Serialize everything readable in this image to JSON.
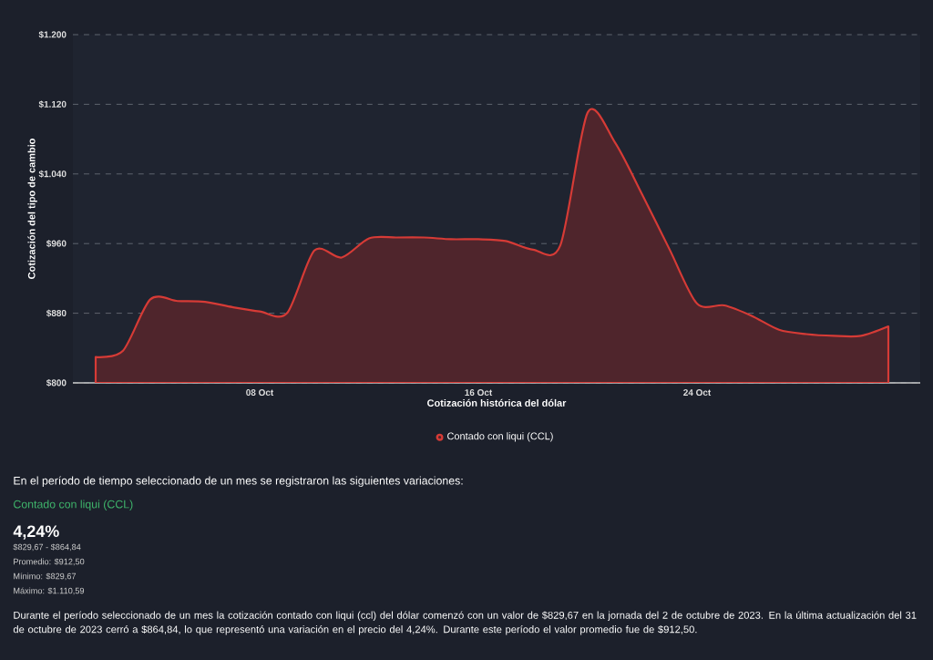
{
  "chart_data": {
    "type": "area",
    "xlabel": "Cotización histórica del dólar",
    "ylabel": "Cotización del tipo de cambio",
    "x": [
      "2023-10-02",
      "2023-10-03",
      "2023-10-04",
      "2023-10-05",
      "2023-10-06",
      "2023-10-07",
      "2023-10-08",
      "2023-10-09",
      "2023-10-10",
      "2023-10-11",
      "2023-10-12",
      "2023-10-13",
      "2023-10-14",
      "2023-10-15",
      "2023-10-16",
      "2023-10-17",
      "2023-10-18",
      "2023-10-19",
      "2023-10-20",
      "2023-10-21",
      "2023-10-22",
      "2023-10-23",
      "2023-10-24",
      "2023-10-25",
      "2023-10-26",
      "2023-10-27",
      "2023-10-28",
      "2023-10-29",
      "2023-10-30",
      "2023-10-31"
    ],
    "series": [
      {
        "name": "Contado con liqui (CCL)",
        "color": "#4f252c",
        "values": [
          829.67,
          837,
          896,
          894,
          893,
          887,
          882,
          880,
          952,
          944,
          966,
          967,
          967,
          965,
          965,
          963,
          953,
          958,
          1110.59,
          1076,
          1016,
          953,
          891,
          889,
          877,
          861,
          856,
          854,
          854,
          864.84
        ]
      }
    ],
    "xlim": [
      "2023-10-01T04:00",
      "2023-11-01T04:00"
    ],
    "xticks": [
      {
        "value": "2023-10-08",
        "label": "08 Oct"
      },
      {
        "value": "2023-10-16",
        "label": "16 Oct"
      },
      {
        "value": "2023-10-24",
        "label": "24 Oct"
      }
    ],
    "ylim": [
      800,
      1200
    ],
    "yticks": [
      {
        "value": 800,
        "label": "$800"
      },
      {
        "value": 880,
        "label": "$880"
      },
      {
        "value": 960,
        "label": "$960"
      },
      {
        "value": 1040,
        "label": "$1.040"
      },
      {
        "value": 1120,
        "label": "$1.120"
      },
      {
        "value": 1200,
        "label": "$1.200"
      }
    ],
    "grid": "y",
    "legend": "bottom",
    "annotations": [
      "En el período de tiempo seleccionado de un mes se registraron las siguientes variaciones:",
      "Contado con liqui (CCL)",
      "4,24%",
      "$829,67 - $864,84",
      "Promedio: $912,50",
      "Mínimo: $829,67",
      "Máximo: $1.110,59",
      "Durante el período seleccionado de un mes la cotización contado con liqui (ccl) del dólar comenzó con un valor de $829,67 en la jornada del 2 de octubre de 2023. En la última actualización del 31 de octubre de 2023 cerró a $864,84, lo que representó una variación en el precio del 4,24%. Durante este período el valor promedio fue de $912,50."
    ]
  }
}
